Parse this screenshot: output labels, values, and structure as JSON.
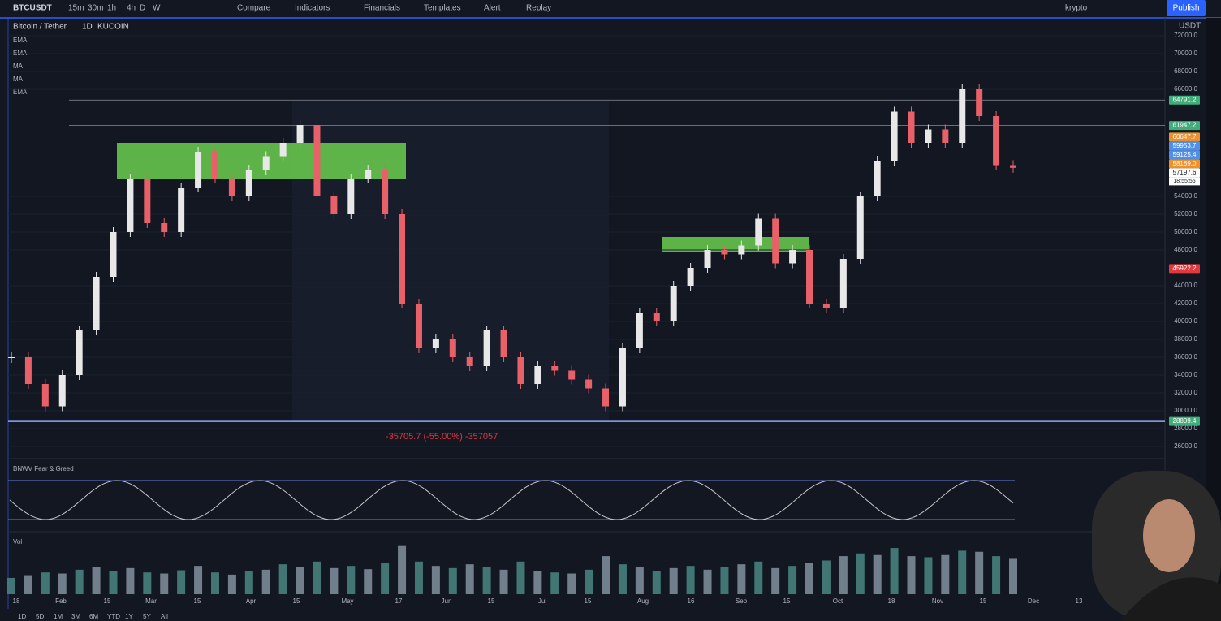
{
  "toolbar": {
    "symbol": "BTCUSDT",
    "intervals": [
      "15m",
      "30m",
      "1h",
      "4h",
      "D",
      "W"
    ],
    "buttons": [
      "Compare",
      "Indicators",
      "Financials",
      "Templates",
      "Alert",
      "Replay"
    ],
    "user": "krypto",
    "publish": "Publish"
  },
  "legend": {
    "title": "Bitcoin / Tether",
    "interval": "1D",
    "exchange": "KUCOIN",
    "indicators": [
      "EMA",
      "EMA",
      "MA",
      "MA",
      "EMA"
    ]
  },
  "chart_data": {
    "type": "candlestick",
    "unit": "USDT",
    "closes": [
      36000,
      33000,
      30500,
      34000,
      39000,
      45000,
      50000,
      56000,
      51000,
      50000,
      55000,
      59000,
      56000,
      54000,
      57000,
      58500,
      60000,
      62000,
      54000,
      52000,
      56000,
      57000,
      52000,
      42000,
      37000,
      38000,
      36000,
      35000,
      39000,
      36000,
      33000,
      35000,
      34500,
      33500,
      32500,
      30500,
      37000,
      41000,
      40000,
      44000,
      46000,
      48000,
      47500,
      48500,
      51500,
      46500,
      48000,
      42000,
      41500,
      47000,
      54000,
      58000,
      63500,
      60000,
      61500,
      60000,
      66000,
      63000,
      57500,
      57197.6
    ],
    "ylim": [
      25000,
      74000
    ],
    "yticks": [
      {
        "value": 26000,
        "label": "26000.0"
      },
      {
        "value": 28000,
        "label": "28000.0"
      },
      {
        "value": 30000,
        "label": "30000.0"
      },
      {
        "value": 32000,
        "label": "32000.0"
      },
      {
        "value": 34000,
        "label": "34000.0"
      },
      {
        "value": 36000,
        "label": "36000.0"
      },
      {
        "value": 38000,
        "label": "38000.0"
      },
      {
        "value": 40000,
        "label": "40000.0"
      },
      {
        "value": 42000,
        "label": "42000.0"
      },
      {
        "value": 44000,
        "label": "44000.0"
      },
      {
        "value": 48000,
        "label": "48000.0"
      },
      {
        "value": 50000,
        "label": "50000.0"
      },
      {
        "value": 52000,
        "label": "52000.0"
      },
      {
        "value": 54000,
        "label": "54000.0"
      },
      {
        "value": 66000,
        "label": "66000.0"
      },
      {
        "value": 68000,
        "label": "68000.0"
      },
      {
        "value": 70000,
        "label": "70000.0"
      },
      {
        "value": 72000,
        "label": "72000.0"
      }
    ],
    "x_labels": [
      "18",
      "Feb",
      "15",
      "Mar",
      "15",
      "Apr",
      "15",
      "May",
      "17",
      "Jun",
      "15",
      "Jul",
      "15",
      "Aug",
      "16",
      "Sep",
      "15",
      "Oct",
      "18",
      "Nov",
      "15",
      "Dec",
      "13"
    ],
    "price_tags": [
      {
        "value": 64791.2,
        "label": "64791.2",
        "color": "#3fae7a"
      },
      {
        "value": 61947.2,
        "label": "61947.2",
        "color": "#3fae7a"
      },
      {
        "value": 60647.7,
        "label": "60647.7",
        "color": "#f0902a"
      },
      {
        "value": 59953.7,
        "label": "59953.7",
        "color": "#4f8fe8"
      },
      {
        "value": 59125.4,
        "label": "59125.4",
        "color": "#4f8fe8"
      },
      {
        "value": 58189.0,
        "label": "58189.0",
        "color": "#f0902a"
      },
      {
        "value": 57197.6,
        "label": "57197.6",
        "color": "#ffffff"
      },
      {
        "value": 45922.2,
        "label": "45922.2",
        "color": "#e0393e"
      },
      {
        "value": 28809.4,
        "label": "28809.4",
        "color": "#3fae7a"
      }
    ],
    "countdown": "18:55:56",
    "measure": "-35705.7 (-55.00%) -357057"
  },
  "fear_greed": {
    "title": "BNWV Fear & Greed"
  },
  "volume": {
    "title": "Vol",
    "ylim": [
      0,
      100
    ],
    "values": [
      30,
      35,
      40,
      38,
      45,
      50,
      42,
      48,
      40,
      38,
      44,
      52,
      40,
      36,
      42,
      45,
      55,
      50,
      60,
      48,
      52,
      46,
      58,
      90,
      60,
      52,
      48,
      55,
      50,
      45,
      60,
      42,
      40,
      38,
      45,
      70,
      55,
      50,
      42,
      48,
      52,
      45,
      50,
      55,
      60,
      48,
      52,
      58,
      62,
      70,
      75,
      72,
      85,
      70,
      68,
      72,
      80,
      78,
      70,
      65
    ]
  },
  "range_buttons": [
    "1D",
    "5D",
    "1M",
    "3M",
    "6M",
    "YTD",
    "1Y",
    "5Y",
    "All"
  ]
}
